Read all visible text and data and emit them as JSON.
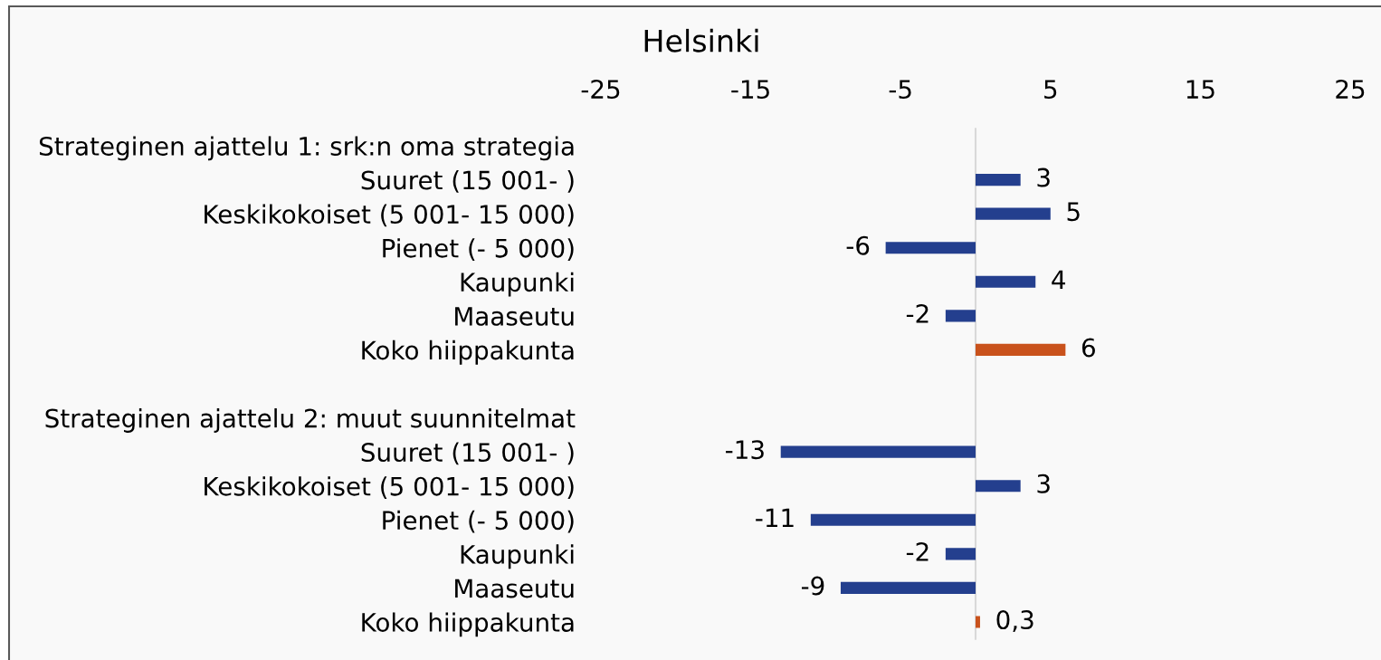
{
  "chart_data": {
    "type": "bar",
    "orientation": "horizontal",
    "title": "Helsinki",
    "categories": [
      "Strateginen ajattelu 1: srk:n oma strategia",
      "Suuret (15 001- )",
      "Keskikokoiset (5 001- 15 000)",
      "Pienet (- 5 000)",
      "Kaupunki",
      "Maaseutu",
      "Koko hiippakunta",
      null,
      "Strateginen ajattelu 2: muut suunnitelmat",
      "Suuret (15 001- )",
      "Keskikokoiset (5 001- 15 000)",
      "Pienet (- 5 000)",
      "Kaupunki",
      "Maaseutu",
      "Koko hiippakunta"
    ],
    "values": [
      null,
      3,
      5,
      -6,
      4,
      -2,
      6,
      null,
      null,
      -13,
      3,
      -11,
      -2,
      -9,
      0.3
    ],
    "colors": [
      null,
      "#243f8e",
      "#243f8e",
      "#243f8e",
      "#243f8e",
      "#243f8e",
      "#c9521c",
      null,
      null,
      "#243f8e",
      "#243f8e",
      "#243f8e",
      "#243f8e",
      "#243f8e",
      "#c9521c"
    ],
    "value_labels": [
      null,
      "3",
      "5",
      "-6",
      "4",
      "-2",
      "6",
      null,
      null,
      "-13",
      "3",
      "-11",
      "-2",
      "-9",
      "0,3"
    ],
    "xlim": [
      -25,
      25
    ],
    "xticks": [
      -25,
      -15,
      -5,
      5,
      15,
      25
    ]
  }
}
